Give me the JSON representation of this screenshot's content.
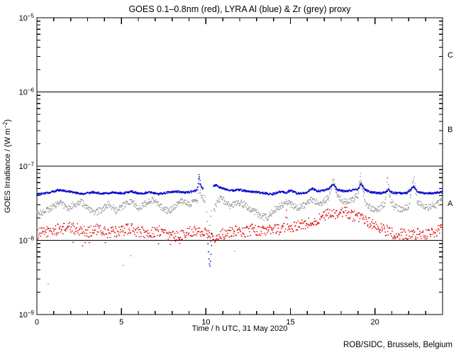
{
  "title": "GOES 0.1–0.8nm (red), LYRA Al (blue) & Zr (grey) proxy",
  "credit": "ROB/SIDC, Brussels, Belgium",
  "chart_data": {
    "type": "scatter",
    "title": "GOES 0.1–0.8nm (red), LYRA Al (blue) & Zr (grey) proxy",
    "xlabel": "Time / h UTC, 31 May 2020",
    "ylabel_parts": {
      "main": "GOES Irradiance / (W m",
      "exp": "-2",
      "close": ")"
    },
    "xlim": [
      0,
      24
    ],
    "x_major_ticks": [
      0,
      5,
      10,
      15,
      20
    ],
    "x_minor_every": 1,
    "y_scale": "log",
    "y_tick_exponents": [
      -5,
      -6,
      -7,
      -8,
      -9
    ],
    "ylim": [
      1e-09,
      1e-05
    ],
    "grid": "off",
    "hlines": [
      1e-06,
      1e-07,
      1e-08
    ],
    "class_labels": [
      {
        "label": "C",
        "band_exponents": [
          -6,
          -5
        ]
      },
      {
        "label": "B",
        "band_exponents": [
          -7,
          -6
        ]
      },
      {
        "label": "A",
        "band_exponents": [
          -8,
          -7
        ]
      }
    ],
    "legend_position": "in-title",
    "series": [
      {
        "key": "goes-xray",
        "name": "GOES 0.1-0.8nm",
        "color": "#e00000",
        "dt": 0.03,
        "noise_dex": 0.075,
        "points": [
          [
            0,
            1.2e-08
          ],
          [
            0.5,
            1.3e-08
          ],
          [
            1.0,
            1.35e-08
          ],
          [
            1.8,
            1.5e-08
          ],
          [
            2.5,
            1.4e-08
          ],
          [
            3.0,
            1.3e-08
          ],
          [
            3.5,
            1.4e-08
          ],
          [
            4.2,
            1.25e-08
          ],
          [
            5.0,
            1.35e-08
          ],
          [
            5.5,
            1.45e-08
          ],
          [
            6.0,
            1.3e-08
          ],
          [
            6.7,
            1.25e-08
          ],
          [
            7.3,
            1.35e-08
          ],
          [
            7.9,
            1.1e-08
          ],
          [
            8.5,
            1.2e-08
          ],
          [
            9.0,
            1.3e-08
          ],
          [
            9.5,
            1.4e-08
          ],
          [
            10.0,
            1.25e-08
          ],
          [
            10.4,
            1.1e-08
          ],
          [
            10.8,
            1.15e-08
          ],
          [
            11.3,
            1.3e-08
          ],
          [
            11.8,
            1.35e-08
          ],
          [
            12.3,
            1.3e-08
          ],
          [
            12.7,
            1.4e-08
          ],
          [
            13.2,
            1.35e-08
          ],
          [
            13.6,
            1.3e-08
          ],
          [
            14.1,
            1.45e-08
          ],
          [
            14.5,
            1.4e-08
          ],
          [
            14.7,
            1.45e-08
          ],
          [
            14.76,
            2.3e-08
          ],
          [
            14.85,
            1.6e-08
          ],
          [
            15.1,
            1.5e-08
          ],
          [
            15.5,
            1.55e-08
          ],
          [
            16.0,
            1.7e-08
          ],
          [
            16.5,
            1.9e-08
          ],
          [
            17.0,
            2.1e-08
          ],
          [
            17.4,
            2.4e-08
          ],
          [
            17.7,
            2.1e-08
          ],
          [
            18.2,
            2.45e-08
          ],
          [
            18.6,
            2.2e-08
          ],
          [
            19.0,
            2e-08
          ],
          [
            19.5,
            1.8e-08
          ],
          [
            20.0,
            1.6e-08
          ],
          [
            20.5,
            1.4e-08
          ],
          [
            21.0,
            1.25e-08
          ],
          [
            21.5,
            1.2e-08
          ],
          [
            22.0,
            1.2e-08
          ],
          [
            22.5,
            1.22e-08
          ],
          [
            23.0,
            1.2e-08
          ],
          [
            23.5,
            1.25e-08
          ],
          [
            24.0,
            1.55e-08
          ]
        ],
        "extra_points": [
          [
            2.15,
            9.4e-09
          ],
          [
            2.7,
            8.4e-09
          ],
          [
            2.85,
            9.3e-09
          ],
          [
            3.1,
            9.3e-09
          ],
          [
            4.05,
            9.3e-09
          ],
          [
            7.2,
            9e-09
          ],
          [
            7.9,
            8.8e-09
          ],
          [
            8.45,
            9.1e-09
          ]
        ],
        "gaps": []
      },
      {
        "key": "lyra-zr-proxy",
        "name": "LYRA Zr proxy",
        "color": "#9a9a9a",
        "dt": 0.024,
        "noise_dex": 0.045,
        "points": [
          [
            0,
            2.2e-08
          ],
          [
            0.5,
            2.5e-08
          ],
          [
            1.0,
            2.9e-08
          ],
          [
            1.4,
            3.2e-08
          ],
          [
            1.8,
            2.7e-08
          ],
          [
            2.2,
            3e-08
          ],
          [
            2.6,
            3.4e-08
          ],
          [
            3.0,
            2.7e-08
          ],
          [
            3.4,
            2.3e-08
          ],
          [
            3.8,
            2.6e-08
          ],
          [
            4.3,
            3.1e-08
          ],
          [
            4.7,
            2.5e-08
          ],
          [
            5.1,
            2.9e-08
          ],
          [
            5.6,
            3.4e-08
          ],
          [
            6.0,
            2.7e-08
          ],
          [
            6.4,
            3.1e-08
          ],
          [
            6.9,
            3.5e-08
          ],
          [
            7.3,
            2.9e-08
          ],
          [
            7.8,
            2.4e-08
          ],
          [
            8.2,
            3e-08
          ],
          [
            8.6,
            3.4e-08
          ],
          [
            9.0,
            3e-08
          ],
          [
            9.4,
            3.3e-08
          ],
          [
            9.5,
            3.5e-08
          ],
          [
            9.58,
            6.3e-08
          ],
          [
            9.66,
            4.6e-08
          ],
          [
            9.75,
            4e-08
          ],
          [
            9.9,
            3.6e-08
          ],
          [
            10.5,
            2.6e-08
          ],
          [
            10.7,
            3.4e-08
          ],
          [
            10.9,
            3.7e-08
          ],
          [
            11.2,
            3.2e-08
          ],
          [
            11.5,
            2.9e-08
          ],
          [
            11.9,
            3.3e-08
          ],
          [
            12.3,
            3e-08
          ],
          [
            12.7,
            2.6e-08
          ],
          [
            13.2,
            2.2e-08
          ],
          [
            13.6,
            2e-08
          ],
          [
            14.0,
            2.5e-08
          ],
          [
            14.4,
            2.9e-08
          ],
          [
            14.76,
            3.3e-08
          ],
          [
            15.1,
            3e-08
          ],
          [
            15.5,
            2.7e-08
          ],
          [
            15.9,
            3.1e-08
          ],
          [
            16.3,
            3.6e-08
          ],
          [
            16.7,
            3.1e-08
          ],
          [
            17.0,
            3.4e-08
          ],
          [
            17.3,
            3.8e-08
          ],
          [
            17.45,
            5.5e-08
          ],
          [
            17.55,
            7.2e-08
          ],
          [
            17.7,
            4.5e-08
          ],
          [
            17.9,
            3.7e-08
          ],
          [
            18.2,
            3.3e-08
          ],
          [
            18.6,
            3.5e-08
          ],
          [
            19.0,
            4e-08
          ],
          [
            19.15,
            7.3e-08
          ],
          [
            19.3,
            4.5e-08
          ],
          [
            19.5,
            3e-08
          ],
          [
            19.9,
            2.6e-08
          ],
          [
            20.3,
            2.7e-08
          ],
          [
            20.6,
            3.2e-08
          ],
          [
            20.75,
            7e-08
          ],
          [
            20.9,
            3.6e-08
          ],
          [
            21.1,
            2.9e-08
          ],
          [
            21.5,
            2.6e-08
          ],
          [
            22.0,
            2.8e-08
          ],
          [
            22.3,
            6.9e-08
          ],
          [
            22.5,
            3.4e-08
          ],
          [
            22.8,
            2.9e-08
          ],
          [
            23.2,
            2.8e-08
          ],
          [
            23.6,
            3e-08
          ],
          [
            24.0,
            3.5e-08
          ]
        ],
        "extra_points": [
          [
            0.67,
            2.6e-09
          ],
          [
            5.1,
            4.6e-09
          ],
          [
            5.55,
            6.2e-09
          ],
          [
            11.7,
            7.1e-09
          ],
          [
            10.05,
            2.4e-08
          ],
          [
            10.08,
            1.8e-08
          ],
          [
            10.12,
            1.35e-08
          ],
          [
            10.16,
            1.1e-08
          ],
          [
            10.2,
            1.25e-08
          ],
          [
            10.24,
            1.6e-08
          ],
          [
            10.28,
            2.1e-08
          ],
          [
            10.33,
            2.5e-08
          ]
        ],
        "gaps": [
          [
            9.97,
            10.47
          ]
        ]
      },
      {
        "key": "lyra-al-proxy",
        "name": "LYRA Al proxy",
        "color": "#0000d0",
        "dt": 0.02,
        "noise_dex": 0.013,
        "points": [
          [
            0,
            4.15e-08
          ],
          [
            0.7,
            4.4e-08
          ],
          [
            1.3,
            4.75e-08
          ],
          [
            2.0,
            4.5e-08
          ],
          [
            2.7,
            4.2e-08
          ],
          [
            3.3,
            4.45e-08
          ],
          [
            3.9,
            4.25e-08
          ],
          [
            4.5,
            4.4e-08
          ],
          [
            5.1,
            4.3e-08
          ],
          [
            5.6,
            4.55e-08
          ],
          [
            6.1,
            4.25e-08
          ],
          [
            6.7,
            4.45e-08
          ],
          [
            7.2,
            4.2e-08
          ],
          [
            7.7,
            4.4e-08
          ],
          [
            8.2,
            4.55e-08
          ],
          [
            8.7,
            4.4e-08
          ],
          [
            9.1,
            4.5e-08
          ],
          [
            9.45,
            4.7e-08
          ],
          [
            9.52,
            5.2e-08
          ],
          [
            9.58,
            7.9e-08
          ],
          [
            9.65,
            6e-08
          ],
          [
            9.72,
            5.3e-08
          ],
          [
            9.8,
            5e-08
          ],
          [
            10.45,
            5.4e-08
          ],
          [
            10.6,
            5.6e-08
          ],
          [
            10.8,
            5.2e-08
          ],
          [
            11.1,
            4.9e-08
          ],
          [
            11.5,
            4.7e-08
          ],
          [
            12.0,
            4.8e-08
          ],
          [
            12.4,
            4.6e-08
          ],
          [
            12.9,
            4.5e-08
          ],
          [
            13.4,
            4.35e-08
          ],
          [
            13.9,
            4.15e-08
          ],
          [
            14.3,
            4.5e-08
          ],
          [
            14.76,
            4.4e-08
          ],
          [
            15.0,
            4.7e-08
          ],
          [
            15.4,
            4.3e-08
          ],
          [
            15.9,
            4.35e-08
          ],
          [
            16.3,
            5e-08
          ],
          [
            16.6,
            4.6e-08
          ],
          [
            17.0,
            4.7e-08
          ],
          [
            17.3,
            5e-08
          ],
          [
            17.5,
            5.7e-08
          ],
          [
            17.8,
            4.8e-08
          ],
          [
            18.2,
            4.6e-08
          ],
          [
            18.6,
            4.7e-08
          ],
          [
            19.0,
            4.9e-08
          ],
          [
            19.18,
            5.8e-08
          ],
          [
            19.4,
            4.8e-08
          ],
          [
            19.8,
            4.45e-08
          ],
          [
            20.2,
            4.3e-08
          ],
          [
            20.6,
            4.4e-08
          ],
          [
            20.8,
            4.8e-08
          ],
          [
            21.0,
            4.4e-08
          ],
          [
            21.4,
            4.3e-08
          ],
          [
            21.9,
            4.35e-08
          ],
          [
            22.3,
            5.3e-08
          ],
          [
            22.5,
            4.6e-08
          ],
          [
            22.9,
            4.3e-08
          ],
          [
            23.4,
            4.3e-08
          ],
          [
            23.9,
            4.45e-08
          ],
          [
            24.0,
            4.5e-08
          ]
        ],
        "extra_points": [
          [
            10.12,
            9e-09
          ],
          [
            10.15,
            7e-09
          ],
          [
            10.18,
            5.6e-09
          ],
          [
            10.21,
            4.8e-09
          ],
          [
            10.24,
            4.5e-09
          ],
          [
            10.27,
            5.2e-09
          ],
          [
            10.3,
            6.5e-09
          ],
          [
            10.33,
            8.5e-09
          ],
          [
            10.36,
            1.2e-08
          ]
        ],
        "gaps": [
          [
            9.84,
            10.43
          ]
        ]
      }
    ]
  }
}
